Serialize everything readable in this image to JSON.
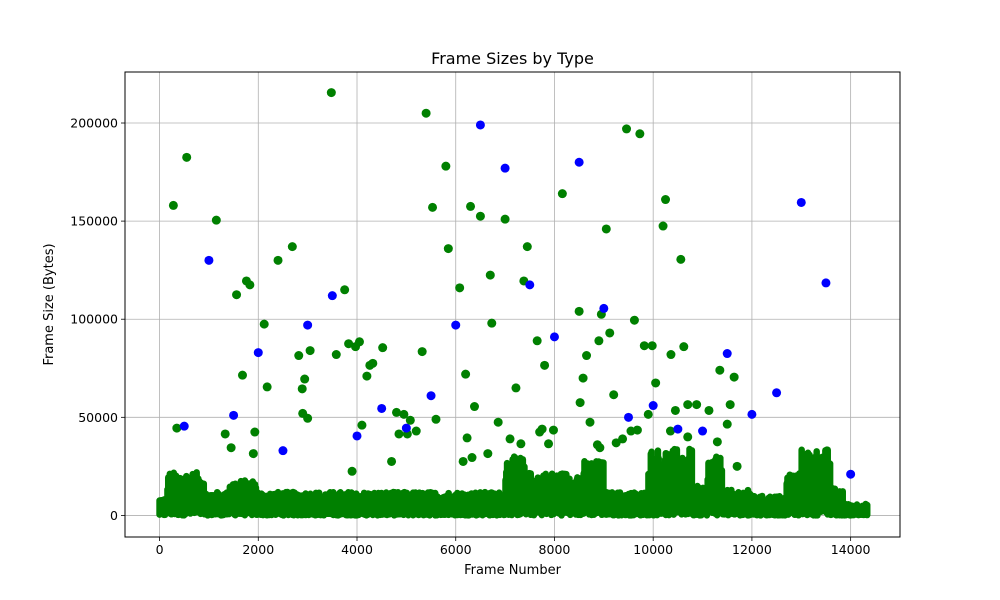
{
  "chart_data": {
    "type": "scatter",
    "title": "Frame Sizes by Type",
    "xlabel": "Frame Number",
    "ylabel": "Frame Size (Bytes)",
    "xlim": [
      -700,
      15000
    ],
    "ylim": [
      -11000,
      226000
    ],
    "xticks": [
      0,
      2000,
      4000,
      6000,
      8000,
      10000,
      12000,
      14000
    ],
    "yticks": [
      0,
      50000,
      100000,
      150000,
      200000
    ],
    "xtick_labels": [
      "0",
      "2000",
      "4000",
      "6000",
      "8000",
      "10000",
      "12000",
      "14000"
    ],
    "ytick_labels": [
      "0",
      "50000",
      "100000",
      "150000",
      "200000"
    ],
    "grid": true,
    "colors": {
      "green": "#008000",
      "blue": "#0000ff"
    },
    "series": [
      {
        "color": "#008000",
        "x": [
          280,
          550,
          1150,
          1560,
          1680,
          1760,
          1830,
          1930,
          2120,
          2180,
          2400,
          2690,
          2820,
          2890,
          2940,
          3050,
          3480,
          3580,
          3750,
          3830,
          3900,
          3970,
          4050,
          4200,
          4260,
          4320,
          4520,
          4700,
          4800,
          4950,
          5080,
          5320,
          5400,
          5530,
          5600,
          5800,
          5850,
          6080,
          6150,
          6200,
          6230,
          6300,
          6330,
          6380,
          6500,
          6650,
          6700,
          6730,
          6860,
          7000,
          7100,
          7220,
          7320,
          7380,
          7450,
          7650,
          7700,
          7800,
          7980,
          8160,
          8500,
          8520,
          8580,
          8650,
          8720,
          8900,
          8950,
          9050,
          9120,
          9200,
          9380,
          9460,
          9550,
          9620,
          9680,
          9730,
          9820,
          9900,
          9980,
          10050,
          10200,
          10250,
          10360,
          10450,
          10560,
          10620,
          10700,
          10880,
          11130,
          11300,
          11350,
          11500,
          11560,
          11640,
          11700,
          350,
          1330,
          1450,
          1900,
          2900,
          3000,
          4100,
          4850,
          5020,
          5200,
          7750,
          7880,
          8870,
          8920,
          9250,
          10350,
          10700
        ],
        "y": [
          158000,
          182500,
          150500,
          112500,
          71500,
          119500,
          117500,
          42500,
          97500,
          65500,
          130000,
          137000,
          81500,
          64500,
          69500,
          84000,
          215500,
          82000,
          115000,
          87500,
          22500,
          86000,
          88500,
          71000,
          76500,
          77500,
          85500,
          27500,
          52500,
          51500,
          48500,
          83500,
          205000,
          157000,
          49000,
          178000,
          136000,
          116000,
          27500,
          72000,
          39500,
          157500,
          29500,
          55500,
          152500,
          31500,
          122500,
          98000,
          47500,
          151000,
          39000,
          65000,
          36500,
          119500,
          137000,
          89000,
          42500,
          76500,
          43500,
          164000,
          104000,
          57500,
          70000,
          81500,
          47500,
          89000,
          102500,
          146000,
          93000,
          61500,
          39000,
          197000,
          43000,
          99500,
          43500,
          194500,
          86500,
          51500,
          86500,
          67500,
          147500,
          161000,
          82000,
          53500,
          130500,
          86000,
          56500,
          56500,
          53500,
          37500,
          74000,
          46500,
          56500,
          70500,
          25000,
          44500,
          41500,
          34500,
          31500,
          52000,
          49500,
          46000,
          41500,
          41500,
          43000,
          44000,
          36500,
          36000,
          34500,
          37000,
          43000,
          40000
        ]
      },
      {
        "color": "#0000ff",
        "x": [
          500,
          1000,
          1500,
          2000,
          2500,
          3000,
          3500,
          4000,
          4500,
          5000,
          5500,
          6000,
          6500,
          7000,
          7500,
          8000,
          8500,
          9000,
          9500,
          10000,
          10500,
          11000,
          11500,
          12000,
          12500,
          13000,
          13500,
          14000
        ],
        "y": [
          45500,
          130000,
          51000,
          83000,
          33000,
          97000,
          112000,
          40500,
          54500,
          44500,
          61000,
          97000,
          199000,
          177000,
          117500,
          91000,
          180000,
          105500,
          50000,
          56000,
          44000,
          43000,
          82500,
          51500,
          62500,
          159500,
          118500,
          21000
        ]
      }
    ],
    "dense_band": {
      "color": "#008000",
      "x_range": [
        0,
        14350
      ],
      "y_range_bytes": [
        0,
        35000
      ]
    }
  }
}
